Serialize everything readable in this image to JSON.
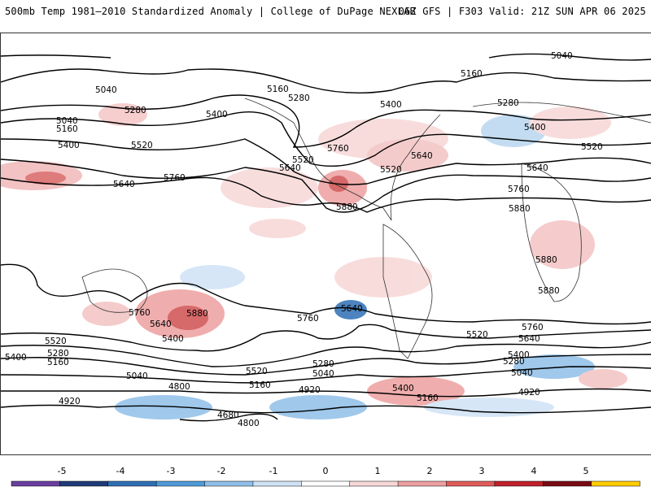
{
  "header": {
    "left_title": "500mb Temp 1981–2010 Standardized Anomaly | College of DuPage NEXLAB",
    "right_title": "06Z GFS | F303 Valid: 21Z SUN APR 06 2025"
  },
  "map": {
    "contour_labels": [
      "5040",
      "5160",
      "5280",
      "5400",
      "5520",
      "5640",
      "5760",
      "5880",
      "4920",
      "4800",
      "4680"
    ]
  },
  "colorbar": {
    "ticks": [
      "-5",
      "-4",
      "-3",
      "-2",
      "-1",
      "0",
      "1",
      "2",
      "3",
      "4",
      "5"
    ],
    "colors": [
      "#6a3fa0",
      "#1f3b78",
      "#2f6fb5",
      "#4f9ad8",
      "#8fbfe8",
      "#cfe2f5",
      "#ffffff",
      "#f7d7d7",
      "#ee9f9f",
      "#e05a5a",
      "#c0202a",
      "#7a0a14",
      "#ffcc00"
    ]
  }
}
